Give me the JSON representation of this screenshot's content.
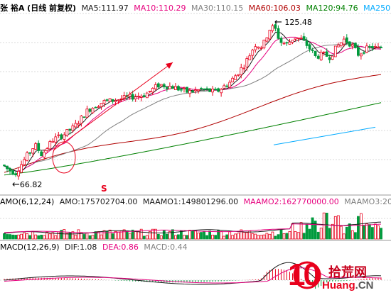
{
  "main_panel": {
    "title": "张  裕A (日线 前复权)",
    "indicators": [
      {
        "label": "MA5:111.97",
        "color": "#1a1a1a"
      },
      {
        "label": "MA10:110.29",
        "color": "#e6007e"
      },
      {
        "label": "MA30:110.15",
        "color": "#808080"
      },
      {
        "label": "MA60:106.03",
        "color": "#b00000"
      },
      {
        "label": "MA120:94.76",
        "color": "#008000"
      },
      {
        "label": "MA250",
        "color": "#00aaff"
      }
    ],
    "high_label": "125.48",
    "low_label": "66.82",
    "marker_s": "S"
  },
  "amo_panel": {
    "title": "AMO(6,12,24)",
    "indicators": [
      {
        "label": "AMO:175702704.00",
        "color": "#1a1a1a"
      },
      {
        "label": "MAAMO1:149801296.00",
        "color": "#1a1a1a"
      },
      {
        "label": "MAAMO2:162770000.00",
        "color": "#e6007e"
      },
      {
        "label": "MAAMO3:20",
        "color": "#808080"
      }
    ]
  },
  "macd_panel": {
    "title": "MACD(12,26,9)",
    "indicators": [
      {
        "label": "DIF:1.08",
        "color": "#1a1a1a"
      },
      {
        "label": "DEA:0.86",
        "color": "#e6007e"
      },
      {
        "label": "MACD:0.44",
        "color": "#808080"
      }
    ]
  },
  "watermark": {
    "big": "10",
    "site": "拾荒网",
    "url_part1": "Huang",
    "url_part2": ".CN"
  },
  "colors": {
    "up": "#e8001c",
    "down": "#009a3d",
    "grid": "#d8d8d8",
    "arrow": "#e8001c"
  },
  "chart_data": {
    "type": "candlestick",
    "title": "张  裕A (日线 前复权)",
    "xlabel": "",
    "ylabel": "",
    "ylim": [
      60,
      130
    ],
    "high": 125.48,
    "low": 66.82,
    "series": [
      {
        "name": "MA5",
        "last": 111.97
      },
      {
        "name": "MA10",
        "last": 110.29
      },
      {
        "name": "MA30",
        "last": 110.15
      },
      {
        "name": "MA60",
        "last": 106.03
      },
      {
        "name": "MA120",
        "last": 94.76
      },
      {
        "name": "MA250"
      }
    ],
    "volume": {
      "AMO": 175702704.0,
      "MAAMO1": 149801296.0,
      "MAAMO2": 162770000.0
    },
    "macd": {
      "DIF": 1.08,
      "DEA": 0.86,
      "MACD": 0.44
    }
  }
}
